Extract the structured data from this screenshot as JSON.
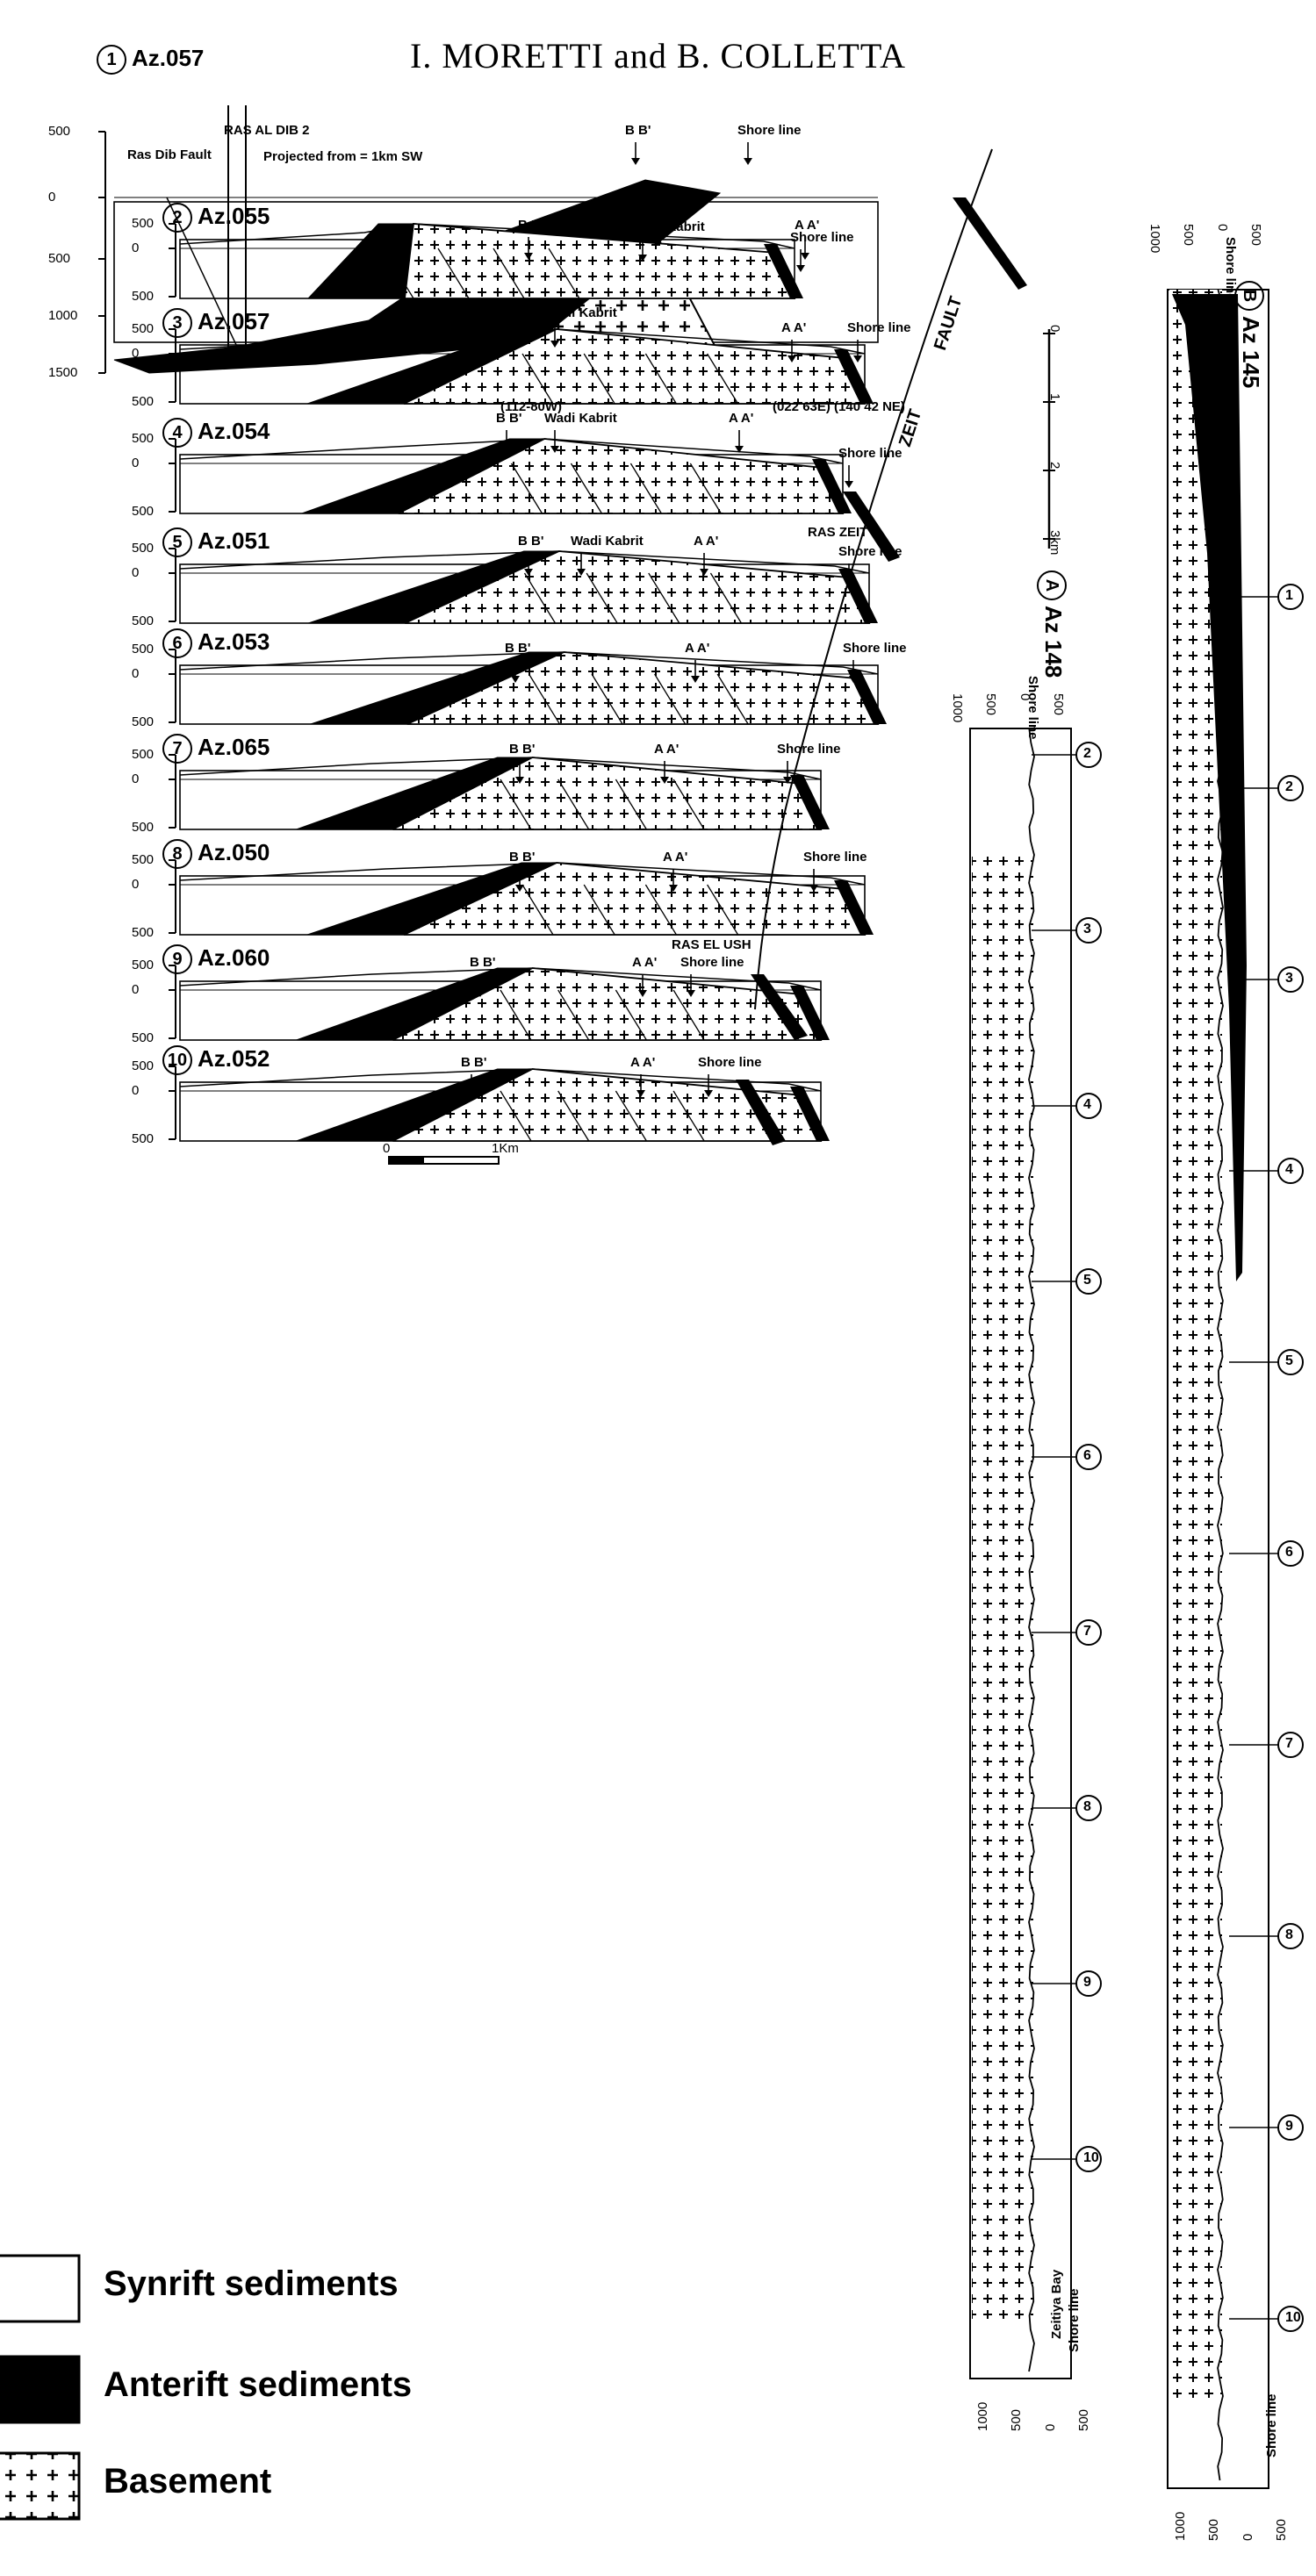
{
  "header": "I. MORETTI and B. COLLETTA",
  "sections": [
    {
      "num": "1",
      "az": "Az.057",
      "ticks": [
        "500",
        "0",
        "500",
        "1000",
        "1500"
      ],
      "annotations": [
        "Ras Dib Fault",
        "RAS AL DIB 2",
        "Projected from = 1km SW",
        "B B'",
        "Shore line"
      ]
    },
    {
      "num": "2",
      "az": "Az.055",
      "ticks": [
        "500",
        "0",
        "500"
      ],
      "annotations": [
        "B B'",
        "Wadi Kabrit",
        "A A'",
        "Shore line"
      ]
    },
    {
      "num": "3",
      "az": "Az.057",
      "ticks": [
        "500",
        "0",
        "500"
      ],
      "annotations": [
        "B B'",
        "Wadi Kabrit",
        "A A'",
        "Shore line",
        "(112-80W)",
        "(022 63E) (140 42 NE)"
      ]
    },
    {
      "num": "4",
      "az": "Az.054",
      "ticks": [
        "500",
        "0",
        "500"
      ],
      "annotations": [
        "B B'",
        "Wadi Kabrit",
        "A A'",
        "Shore line"
      ]
    },
    {
      "num": "5",
      "az": "Az.051",
      "ticks": [
        "500",
        "0",
        "500"
      ],
      "annotations": [
        "B B'",
        "Wadi Kabrit",
        "A A'",
        "RAS ZEIT",
        "Shore line"
      ]
    },
    {
      "num": "6",
      "az": "Az.053",
      "ticks": [
        "500",
        "0",
        "500"
      ],
      "annotations": [
        "B B'",
        "A A'",
        "Shore line"
      ]
    },
    {
      "num": "7",
      "az": "Az.065",
      "ticks": [
        "500",
        "0",
        "500"
      ],
      "annotations": [
        "B B'",
        "A A'",
        "Shore line"
      ]
    },
    {
      "num": "8",
      "az": "Az.050",
      "ticks": [
        "500",
        "0",
        "500"
      ],
      "annotations": [
        "B B'",
        "A A'",
        "Shore line"
      ]
    },
    {
      "num": "9",
      "az": "Az.060",
      "ticks": [
        "500",
        "0",
        "500"
      ],
      "annotations": [
        "B B'",
        "A A'",
        "RAS EL USH",
        "Shore line"
      ]
    },
    {
      "num": "10",
      "az": "Az.052",
      "ticks": [
        "500",
        "0",
        "500"
      ],
      "annotations": [
        "B B'",
        "A A'",
        "Shore line"
      ]
    }
  ],
  "fault_label": "ZEIT FAULT",
  "fault_words": [
    "ZEIT",
    "FAULT"
  ],
  "scale_vertical": {
    "labels": [
      "0",
      "1",
      "2",
      "3km"
    ]
  },
  "scale_bottom": {
    "labels": [
      "0",
      "1Km"
    ]
  },
  "long_sections": [
    {
      "id": "A",
      "az": "Az 148",
      "ticks": [
        "1000",
        "500",
        "0",
        "500"
      ],
      "start": "Shore line",
      "end": "Shore line",
      "end_note": "Zeitiya Bay",
      "markers": [
        "2",
        "3",
        "4",
        "5",
        "6",
        "7",
        "8",
        "9",
        "10"
      ]
    },
    {
      "id": "B",
      "az": "Az 145",
      "ticks": [
        "1000",
        "500",
        "0",
        "500"
      ],
      "start": "Shore line",
      "end": "Shore line",
      "markers": [
        "1",
        "2",
        "3",
        "4",
        "5",
        "6",
        "7",
        "8",
        "9",
        "10"
      ]
    }
  ],
  "legend": [
    {
      "key": "synrift",
      "label": "Synrift sediments",
      "fill": "#ffffff"
    },
    {
      "key": "anterift",
      "label": "Anterift sediments",
      "fill": "#000000"
    },
    {
      "key": "basement",
      "label": "Basement",
      "fill": "basement-pattern"
    }
  ],
  "colors": {
    "ink": "#000000",
    "paper": "#ffffff"
  }
}
